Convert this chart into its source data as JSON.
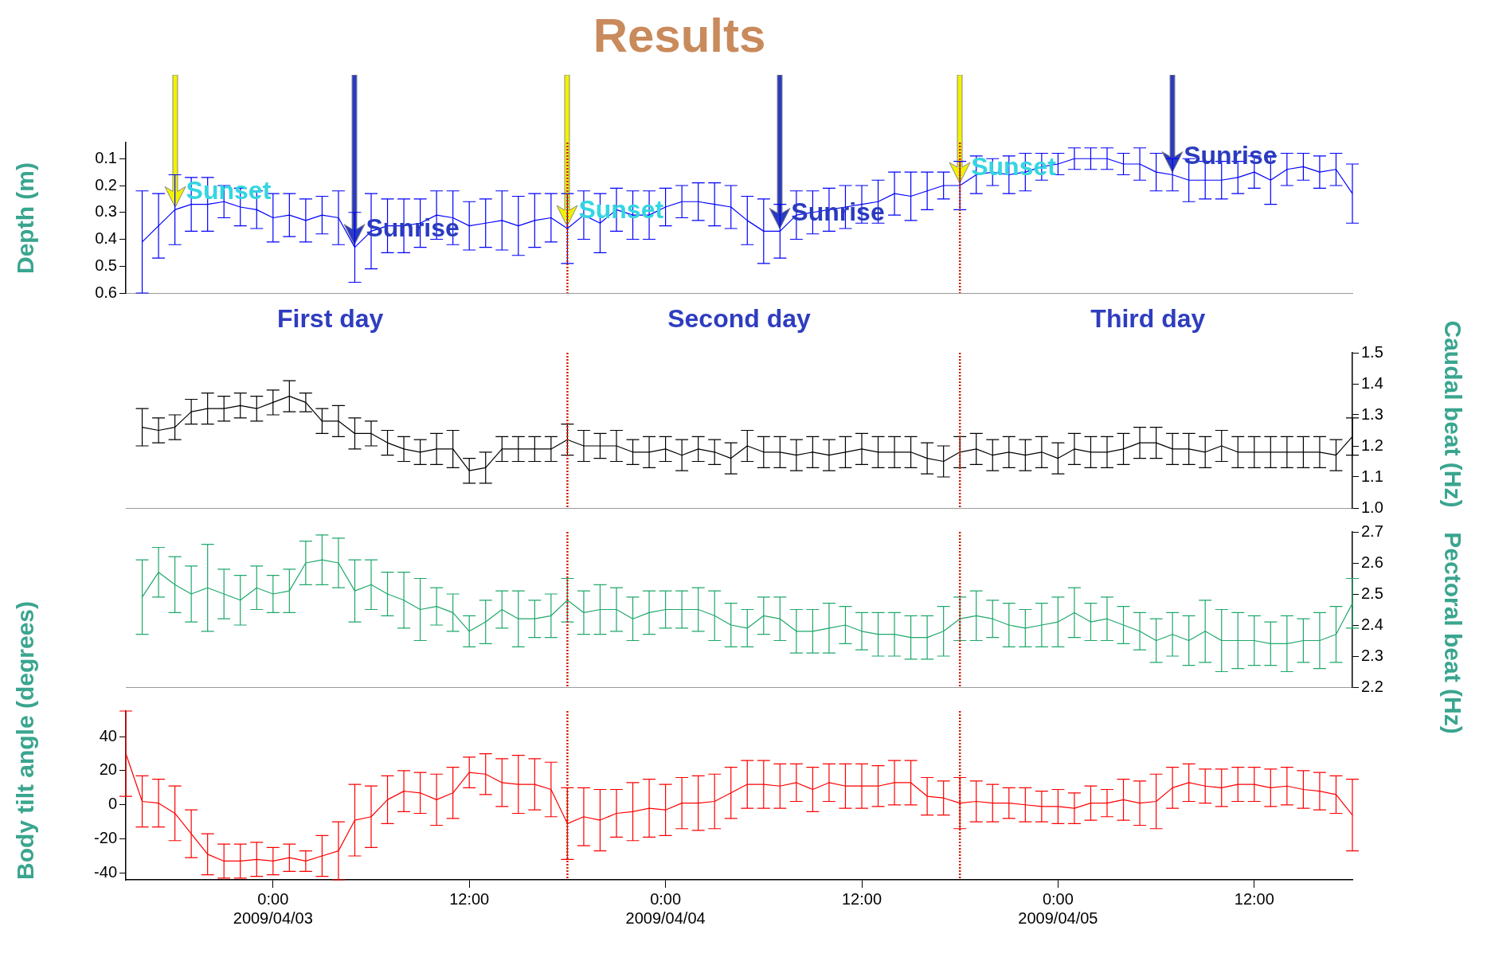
{
  "chart_data": [
    {
      "type": "line",
      "title": "Results",
      "ylabel": "Depth (m)",
      "marker": "none",
      "tick_labels": "y",
      "xlim": [
        "2009-04-02T15:00",
        "2009-04-05T18:00"
      ],
      "ylim": [
        0.6,
        0.04
      ],
      "yticks": [
        0.1,
        0.2,
        0.3,
        0.4,
        0.5,
        0.6
      ],
      "x": [
        "2009-04-02T16:00",
        "2009-04-02T17:00",
        "2009-04-02T18:00",
        "2009-04-02T19:00",
        "2009-04-02T20:00",
        "2009-04-02T21:00",
        "2009-04-02T22:00",
        "2009-04-02T23:00",
        "2009-04-03T00:00",
        "2009-04-03T01:00",
        "2009-04-03T02:00",
        "2009-04-03T03:00",
        "2009-04-03T04:00",
        "2009-04-03T05:00",
        "2009-04-03T06:00",
        "2009-04-03T07:00",
        "2009-04-03T08:00",
        "2009-04-03T09:00",
        "2009-04-03T10:00",
        "2009-04-03T11:00",
        "2009-04-03T12:00",
        "2009-04-03T13:00",
        "2009-04-03T14:00",
        "2009-04-03T15:00",
        "2009-04-03T16:00",
        "2009-04-03T17:00",
        "2009-04-03T18:00",
        "2009-04-03T19:00",
        "2009-04-03T20:00",
        "2009-04-03T21:00",
        "2009-04-03T22:00",
        "2009-04-03T23:00",
        "2009-04-04T00:00",
        "2009-04-04T01:00",
        "2009-04-04T02:00",
        "2009-04-04T03:00",
        "2009-04-04T04:00",
        "2009-04-04T05:00",
        "2009-04-04T06:00",
        "2009-04-04T07:00",
        "2009-04-04T08:00",
        "2009-04-04T09:00",
        "2009-04-04T10:00",
        "2009-04-04T11:00",
        "2009-04-04T12:00",
        "2009-04-04T13:00",
        "2009-04-04T14:00",
        "2009-04-04T15:00",
        "2009-04-04T16:00",
        "2009-04-04T17:00",
        "2009-04-04T18:00",
        "2009-04-04T19:00",
        "2009-04-04T20:00",
        "2009-04-04T21:00",
        "2009-04-04T22:00",
        "2009-04-04T23:00",
        "2009-04-05T00:00",
        "2009-04-05T01:00",
        "2009-04-05T02:00",
        "2009-04-05T03:00",
        "2009-04-05T04:00",
        "2009-04-05T05:00",
        "2009-04-05T06:00",
        "2009-04-05T07:00",
        "2009-04-05T08:00",
        "2009-04-05T09:00",
        "2009-04-05T10:00",
        "2009-04-05T11:00",
        "2009-04-05T12:00",
        "2009-04-05T13:00",
        "2009-04-05T14:00",
        "2009-04-05T15:00",
        "2009-04-05T16:00",
        "2009-04-05T17:00",
        "2009-04-05T18:00"
      ],
      "series": [
        {
          "color": "#0000ff",
          "values": [
            0.41,
            0.35,
            0.29,
            0.27,
            0.27,
            0.26,
            0.28,
            0.29,
            0.32,
            0.31,
            0.33,
            0.31,
            0.32,
            0.43,
            0.37,
            0.35,
            0.35,
            0.34,
            0.31,
            0.32,
            0.35,
            0.34,
            0.33,
            0.35,
            0.33,
            0.32,
            0.36,
            0.31,
            0.34,
            0.29,
            0.31,
            0.31,
            0.28,
            0.26,
            0.26,
            0.27,
            0.28,
            0.33,
            0.37,
            0.37,
            0.31,
            0.3,
            0.29,
            0.28,
            0.27,
            0.26,
            0.23,
            0.24,
            0.22,
            0.2,
            0.2,
            0.16,
            0.15,
            0.16,
            0.15,
            0.13,
            0.12,
            0.1,
            0.1,
            0.1,
            0.12,
            0.12,
            0.15,
            0.16,
            0.18,
            0.18,
            0.18,
            0.17,
            0.15,
            0.18,
            0.14,
            0.13,
            0.15,
            0.14,
            0.23
          ],
          "errors": [
            0.19,
            0.12,
            0.13,
            0.1,
            0.1,
            0.06,
            0.07,
            0.07,
            0.09,
            0.08,
            0.08,
            0.07,
            0.1,
            0.13,
            0.14,
            0.1,
            0.1,
            0.09,
            0.09,
            0.1,
            0.09,
            0.09,
            0.11,
            0.11,
            0.1,
            0.09,
            0.13,
            0.09,
            0.11,
            0.08,
            0.09,
            0.09,
            0.07,
            0.06,
            0.07,
            0.08,
            0.08,
            0.09,
            0.12,
            0.1,
            0.09,
            0.08,
            0.08,
            0.08,
            0.07,
            0.08,
            0.08,
            0.09,
            0.07,
            0.05,
            0.09,
            0.07,
            0.05,
            0.07,
            0.07,
            0.05,
            0.04,
            0.04,
            0.04,
            0.04,
            0.04,
            0.06,
            0.07,
            0.06,
            0.08,
            0.07,
            0.07,
            0.06,
            0.06,
            0.09,
            0.06,
            0.05,
            0.06,
            0.06,
            0.11
          ]
        }
      ],
      "ref_lines": [
        {
          "axis": "x",
          "value": "2009-04-03T18:00",
          "color": "#d02000",
          "line_style": "dotted"
        },
        {
          "axis": "x",
          "value": "2009-04-04T18:00",
          "color": "#d02000",
          "line_style": "dotted"
        }
      ],
      "annotations": [
        {
          "text": "Sunset",
          "x": "2009-04-02T18:00",
          "y": 0.29
        },
        {
          "text": "Sunrise",
          "x": "2009-04-03T05:00",
          "y": 0.43
        },
        {
          "text": "Sunset",
          "x": "2009-04-03T18:00",
          "y": 0.36
        },
        {
          "text": "Sunrise",
          "x": "2009-04-04T07:00",
          "y": 0.37
        },
        {
          "text": "Sunset",
          "x": "2009-04-04T18:00",
          "y": 0.2
        },
        {
          "text": "Sunrise",
          "x": "2009-04-05T07:00",
          "y": 0.16
        },
        "First day",
        "Second day",
        "Third day"
      ]
    },
    {
      "type": "line",
      "y2label": "Caudal beat (Hz)",
      "marker": "none",
      "tick_labels": "y",
      "xlim": [
        "2009-04-02T15:00",
        "2009-04-05T18:00"
      ],
      "y2lim": [
        1.0,
        1.5
      ],
      "y2ticks": [
        {
          "value": 1.0,
          "label": "1.0"
        },
        1.1,
        1.2,
        1.3,
        1.4,
        1.5
      ],
      "x": [
        "2009-04-02T16:00",
        "2009-04-02T17:00",
        "2009-04-02T18:00",
        "2009-04-02T19:00",
        "2009-04-02T20:00",
        "2009-04-02T21:00",
        "2009-04-02T22:00",
        "2009-04-02T23:00",
        "2009-04-03T00:00",
        "2009-04-03T01:00",
        "2009-04-03T02:00",
        "2009-04-03T03:00",
        "2009-04-03T04:00",
        "2009-04-03T05:00",
        "2009-04-03T06:00",
        "2009-04-03T07:00",
        "2009-04-03T08:00",
        "2009-04-03T09:00",
        "2009-04-03T10:00",
        "2009-04-03T11:00",
        "2009-04-03T12:00",
        "2009-04-03T13:00",
        "2009-04-03T14:00",
        "2009-04-03T15:00",
        "2009-04-03T16:00",
        "2009-04-03T17:00",
        "2009-04-03T18:00",
        "2009-04-03T19:00",
        "2009-04-03T20:00",
        "2009-04-03T21:00",
        "2009-04-03T22:00",
        "2009-04-03T23:00",
        "2009-04-04T00:00",
        "2009-04-04T01:00",
        "2009-04-04T02:00",
        "2009-04-04T03:00",
        "2009-04-04T04:00",
        "2009-04-04T05:00",
        "2009-04-04T06:00",
        "2009-04-04T07:00",
        "2009-04-04T08:00",
        "2009-04-04T09:00",
        "2009-04-04T10:00",
        "2009-04-04T11:00",
        "2009-04-04T12:00",
        "2009-04-04T13:00",
        "2009-04-04T14:00",
        "2009-04-04T15:00",
        "2009-04-04T16:00",
        "2009-04-04T17:00",
        "2009-04-04T18:00",
        "2009-04-04T19:00",
        "2009-04-04T20:00",
        "2009-04-04T21:00",
        "2009-04-04T22:00",
        "2009-04-04T23:00",
        "2009-04-05T00:00",
        "2009-04-05T01:00",
        "2009-04-05T02:00",
        "2009-04-05T03:00",
        "2009-04-05T04:00",
        "2009-04-05T05:00",
        "2009-04-05T06:00",
        "2009-04-05T07:00",
        "2009-04-05T08:00",
        "2009-04-05T09:00",
        "2009-04-05T10:00",
        "2009-04-05T11:00",
        "2009-04-05T12:00",
        "2009-04-05T13:00",
        "2009-04-05T14:00",
        "2009-04-05T15:00",
        "2009-04-05T16:00",
        "2009-04-05T17:00",
        "2009-04-05T18:00"
      ],
      "series": [
        {
          "color": "#000000",
          "axis": "y2",
          "values": [
            1.26,
            1.25,
            1.26,
            1.31,
            1.32,
            1.32,
            1.33,
            1.32,
            1.34,
            1.36,
            1.34,
            1.28,
            1.28,
            1.24,
            1.24,
            1.21,
            1.19,
            1.18,
            1.19,
            1.19,
            1.12,
            1.13,
            1.19,
            1.19,
            1.19,
            1.19,
            1.22,
            1.2,
            1.2,
            1.2,
            1.18,
            1.18,
            1.19,
            1.17,
            1.19,
            1.18,
            1.16,
            1.2,
            1.18,
            1.18,
            1.17,
            1.18,
            1.17,
            1.18,
            1.19,
            1.18,
            1.18,
            1.18,
            1.16,
            1.15,
            1.18,
            1.19,
            1.17,
            1.18,
            1.17,
            1.18,
            1.16,
            1.19,
            1.18,
            1.18,
            1.19,
            1.21,
            1.21,
            1.19,
            1.19,
            1.18,
            1.2,
            1.18,
            1.18,
            1.18,
            1.18,
            1.18,
            1.18,
            1.17,
            1.23
          ],
          "errors": [
            0.06,
            0.04,
            0.04,
            0.04,
            0.05,
            0.04,
            0.04,
            0.04,
            0.04,
            0.05,
            0.03,
            0.04,
            0.05,
            0.05,
            0.04,
            0.04,
            0.04,
            0.04,
            0.05,
            0.06,
            0.04,
            0.05,
            0.04,
            0.04,
            0.04,
            0.04,
            0.05,
            0.05,
            0.04,
            0.05,
            0.04,
            0.05,
            0.04,
            0.05,
            0.04,
            0.04,
            0.05,
            0.05,
            0.05,
            0.05,
            0.05,
            0.05,
            0.05,
            0.05,
            0.05,
            0.05,
            0.05,
            0.05,
            0.05,
            0.05,
            0.05,
            0.05,
            0.05,
            0.05,
            0.05,
            0.05,
            0.05,
            0.05,
            0.05,
            0.05,
            0.05,
            0.05,
            0.05,
            0.05,
            0.05,
            0.05,
            0.05,
            0.05,
            0.05,
            0.05,
            0.05,
            0.05,
            0.05,
            0.05,
            0.06
          ]
        }
      ],
      "ref_lines": [
        {
          "axis": "x",
          "value": "2009-04-03T18:00",
          "color": "#d02000",
          "line_style": "dotted"
        },
        {
          "axis": "x",
          "value": "2009-04-04T18:00",
          "color": "#d02000",
          "line_style": "dotted"
        }
      ]
    },
    {
      "type": "line",
      "y2label": "Pectoral beat (Hz)",
      "marker": "none",
      "tick_labels": "y",
      "xlim": [
        "2009-04-02T15:00",
        "2009-04-05T18:00"
      ],
      "y2lim": [
        2.2,
        2.7
      ],
      "y2ticks": [
        2.2,
        2.3,
        2.4,
        2.5,
        2.6,
        2.7
      ],
      "x": [
        "2009-04-02T16:00",
        "2009-04-02T17:00",
        "2009-04-02T18:00",
        "2009-04-02T19:00",
        "2009-04-02T20:00",
        "2009-04-02T21:00",
        "2009-04-02T22:00",
        "2009-04-02T23:00",
        "2009-04-03T00:00",
        "2009-04-03T01:00",
        "2009-04-03T02:00",
        "2009-04-03T03:00",
        "2009-04-03T04:00",
        "2009-04-03T05:00",
        "2009-04-03T06:00",
        "2009-04-03T07:00",
        "2009-04-03T08:00",
        "2009-04-03T09:00",
        "2009-04-03T10:00",
        "2009-04-03T11:00",
        "2009-04-03T12:00",
        "2009-04-03T13:00",
        "2009-04-03T14:00",
        "2009-04-03T15:00",
        "2009-04-03T16:00",
        "2009-04-03T17:00",
        "2009-04-03T18:00",
        "2009-04-03T19:00",
        "2009-04-03T20:00",
        "2009-04-03T21:00",
        "2009-04-03T22:00",
        "2009-04-03T23:00",
        "2009-04-04T00:00",
        "2009-04-04T01:00",
        "2009-04-04T02:00",
        "2009-04-04T03:00",
        "2009-04-04T04:00",
        "2009-04-04T05:00",
        "2009-04-04T06:00",
        "2009-04-04T07:00",
        "2009-04-04T08:00",
        "2009-04-04T09:00",
        "2009-04-04T10:00",
        "2009-04-04T11:00",
        "2009-04-04T12:00",
        "2009-04-04T13:00",
        "2009-04-04T14:00",
        "2009-04-04T15:00",
        "2009-04-04T16:00",
        "2009-04-04T17:00",
        "2009-04-04T18:00",
        "2009-04-04T19:00",
        "2009-04-04T20:00",
        "2009-04-04T21:00",
        "2009-04-04T22:00",
        "2009-04-04T23:00",
        "2009-04-05T00:00",
        "2009-04-05T01:00",
        "2009-04-05T02:00",
        "2009-04-05T03:00",
        "2009-04-05T04:00",
        "2009-04-05T05:00",
        "2009-04-05T06:00",
        "2009-04-05T07:00",
        "2009-04-05T08:00",
        "2009-04-05T09:00",
        "2009-04-05T10:00",
        "2009-04-05T11:00",
        "2009-04-05T12:00",
        "2009-04-05T13:00",
        "2009-04-05T14:00",
        "2009-04-05T15:00",
        "2009-04-05T16:00",
        "2009-04-05T17:00",
        "2009-04-05T18:00"
      ],
      "series": [
        {
          "color": "#1fa86a",
          "axis": "y2",
          "values": [
            2.49,
            2.57,
            2.53,
            2.5,
            2.52,
            2.5,
            2.48,
            2.52,
            2.5,
            2.51,
            2.6,
            2.61,
            2.6,
            2.51,
            2.53,
            2.5,
            2.48,
            2.45,
            2.46,
            2.44,
            2.38,
            2.41,
            2.45,
            2.42,
            2.42,
            2.43,
            2.48,
            2.44,
            2.45,
            2.45,
            2.42,
            2.44,
            2.45,
            2.45,
            2.45,
            2.43,
            2.4,
            2.39,
            2.43,
            2.42,
            2.38,
            2.38,
            2.39,
            2.4,
            2.38,
            2.37,
            2.37,
            2.36,
            2.36,
            2.38,
            2.42,
            2.43,
            2.42,
            2.4,
            2.39,
            2.4,
            2.41,
            2.44,
            2.41,
            2.42,
            2.4,
            2.38,
            2.35,
            2.37,
            2.35,
            2.38,
            2.35,
            2.35,
            2.35,
            2.34,
            2.34,
            2.35,
            2.35,
            2.37,
            2.47
          ],
          "errors": [
            0.12,
            0.08,
            0.09,
            0.09,
            0.14,
            0.08,
            0.08,
            0.07,
            0.06,
            0.07,
            0.07,
            0.08,
            0.08,
            0.1,
            0.08,
            0.07,
            0.09,
            0.1,
            0.06,
            0.06,
            0.05,
            0.07,
            0.06,
            0.09,
            0.06,
            0.07,
            0.07,
            0.07,
            0.08,
            0.07,
            0.07,
            0.07,
            0.06,
            0.06,
            0.07,
            0.08,
            0.07,
            0.06,
            0.06,
            0.07,
            0.07,
            0.07,
            0.08,
            0.06,
            0.06,
            0.07,
            0.07,
            0.07,
            0.07,
            0.08,
            0.07,
            0.08,
            0.06,
            0.07,
            0.06,
            0.07,
            0.08,
            0.08,
            0.06,
            0.07,
            0.06,
            0.06,
            0.07,
            0.07,
            0.08,
            0.1,
            0.1,
            0.09,
            0.08,
            0.07,
            0.09,
            0.07,
            0.09,
            0.09,
            0.08
          ]
        }
      ],
      "ref_lines": [
        {
          "axis": "x",
          "value": "2009-04-03T18:00",
          "color": "#d02000",
          "line_style": "dotted"
        },
        {
          "axis": "x",
          "value": "2009-04-04T18:00",
          "color": "#d02000",
          "line_style": "dotted"
        }
      ]
    },
    {
      "type": "line",
      "ylabel": "Body tilt angle (degrees)",
      "marker": "none",
      "xlim": [
        "2009-04-02T15:00",
        "2009-04-05T18:00"
      ],
      "ylim": [
        -44,
        55
      ],
      "yticks": [
        -40,
        -20,
        0,
        20,
        40
      ],
      "xticks": [
        {
          "value": "2009-04-03T00:00",
          "label": "0:00\n2009/04/03"
        },
        {
          "value": "2009-04-03T12:00",
          "label": "12:00"
        },
        {
          "value": "2009-04-04T00:00",
          "label": "0:00\n2009/04/04"
        },
        {
          "value": "2009-04-04T12:00",
          "label": "12:00"
        },
        {
          "value": "2009-04-05T00:00",
          "label": "0:00\n2009/04/05"
        },
        {
          "value": "2009-04-05T12:00",
          "label": "12:00"
        }
      ],
      "x": [
        "2009-04-02T15:00",
        "2009-04-02T16:00",
        "2009-04-02T17:00",
        "2009-04-02T18:00",
        "2009-04-02T19:00",
        "2009-04-02T20:00",
        "2009-04-02T21:00",
        "2009-04-02T22:00",
        "2009-04-02T23:00",
        "2009-04-03T00:00",
        "2009-04-03T01:00",
        "2009-04-03T02:00",
        "2009-04-03T03:00",
        "2009-04-03T04:00",
        "2009-04-03T05:00",
        "2009-04-03T06:00",
        "2009-04-03T07:00",
        "2009-04-03T08:00",
        "2009-04-03T09:00",
        "2009-04-03T10:00",
        "2009-04-03T11:00",
        "2009-04-03T12:00",
        "2009-04-03T13:00",
        "2009-04-03T14:00",
        "2009-04-03T15:00",
        "2009-04-03T16:00",
        "2009-04-03T17:00",
        "2009-04-03T18:00",
        "2009-04-03T19:00",
        "2009-04-03T20:00",
        "2009-04-03T21:00",
        "2009-04-03T22:00",
        "2009-04-03T23:00",
        "2009-04-04T00:00",
        "2009-04-04T01:00",
        "2009-04-04T02:00",
        "2009-04-04T03:00",
        "2009-04-04T04:00",
        "2009-04-04T05:00",
        "2009-04-04T06:00",
        "2009-04-04T07:00",
        "2009-04-04T08:00",
        "2009-04-04T09:00",
        "2009-04-04T10:00",
        "2009-04-04T11:00",
        "2009-04-04T12:00",
        "2009-04-04T13:00",
        "2009-04-04T14:00",
        "2009-04-04T15:00",
        "2009-04-04T16:00",
        "2009-04-04T17:00",
        "2009-04-04T18:00",
        "2009-04-04T19:00",
        "2009-04-04T20:00",
        "2009-04-04T21:00",
        "2009-04-04T22:00",
        "2009-04-04T23:00",
        "2009-04-05T00:00",
        "2009-04-05T01:00",
        "2009-04-05T02:00",
        "2009-04-05T03:00",
        "2009-04-05T04:00",
        "2009-04-05T05:00",
        "2009-04-05T06:00",
        "2009-04-05T07:00",
        "2009-04-05T08:00",
        "2009-04-05T09:00",
        "2009-04-05T10:00",
        "2009-04-05T11:00",
        "2009-04-05T12:00",
        "2009-04-05T13:00",
        "2009-04-05T14:00",
        "2009-04-05T15:00",
        "2009-04-05T16:00",
        "2009-04-05T17:00",
        "2009-04-05T18:00"
      ],
      "series": [
        {
          "color": "#ff0000",
          "values": [
            30,
            2,
            1,
            -5,
            -17,
            -29,
            -33,
            -33,
            -32,
            -33,
            -31,
            -33,
            -30,
            -27,
            -9,
            -7,
            3,
            8,
            7,
            3,
            7,
            19,
            18,
            13,
            12,
            12,
            9,
            -11,
            -7,
            -9,
            -5,
            -4,
            -2,
            -3,
            1,
            1,
            2,
            7,
            12,
            12,
            11,
            13,
            9,
            13,
            11,
            11,
            11,
            13,
            13,
            5,
            4,
            1,
            2,
            1,
            1,
            0,
            -1,
            -1,
            -2,
            1,
            1,
            3,
            1,
            2,
            10,
            13,
            11,
            10,
            12,
            12,
            10,
            11,
            9,
            8,
            6,
            -6
          ],
          "errors": [
            25,
            15,
            14,
            16,
            14,
            12,
            10,
            10,
            10,
            8,
            8,
            6,
            12,
            17,
            21,
            18,
            14,
            12,
            12,
            15,
            15,
            9,
            12,
            14,
            17,
            15,
            16,
            21,
            17,
            18,
            14,
            17,
            17,
            15,
            15,
            16,
            16,
            15,
            14,
            14,
            13,
            11,
            13,
            11,
            13,
            13,
            12,
            13,
            13,
            11,
            10,
            15,
            12,
            11,
            9,
            10,
            9,
            10,
            9,
            10,
            8,
            12,
            13,
            16,
            12,
            11,
            10,
            11,
            10,
            10,
            11,
            11,
            11,
            11,
            11,
            21
          ]
        }
      ],
      "ref_lines": [
        {
          "axis": "x",
          "value": "2009-04-03T18:00",
          "color": "#d02000",
          "line_style": "dotted"
        },
        {
          "axis": "x",
          "value": "2009-04-04T18:00",
          "color": "#d02000",
          "line_style": "dotted"
        }
      ]
    }
  ]
}
